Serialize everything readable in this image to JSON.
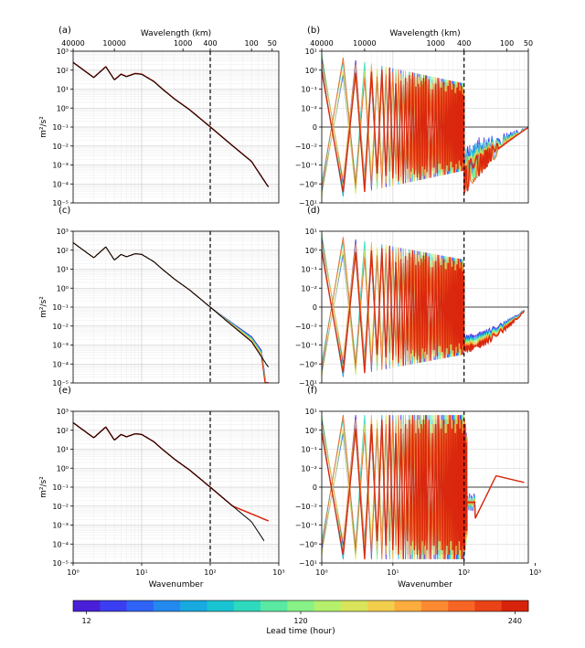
{
  "chart_data": {
    "type": "line",
    "description_panels": "six log-log spectrum panels; left column: kinetic energy spectra vs wavenumber; right column: spectrum difference (symlog) across forecast lead times",
    "top_axis_label": "Wavelength (km)",
    "top_axis_ticks": [
      "40000",
      "10000",
      "1000",
      "400",
      "100",
      "50"
    ],
    "top_axis_tick_wavenumbers": [
      1,
      4,
      40,
      100,
      400,
      800
    ],
    "x_label": "Wavenumber",
    "x_range": [
      1,
      1000
    ],
    "x_ticks": [
      "10⁰",
      "10¹",
      "10²",
      "10³"
    ],
    "left_ylabel": "m²/s²",
    "left_yrange": [
      1e-05,
      1000
    ],
    "left_yticks": [
      "10³",
      "10²",
      "10¹",
      "10⁰",
      "10⁻¹",
      "10⁻²",
      "10⁻³",
      "10⁻⁴",
      "10⁻⁵"
    ],
    "right_yticks": [
      "10¹",
      "10⁰",
      "10⁻¹",
      "10⁻²",
      "0",
      "−10⁻²",
      "−10⁻¹",
      "−10⁰",
      "−10¹"
    ],
    "dashed_line_wavenumber": 100,
    "truth_spectrum": {
      "k": [
        1,
        2,
        3,
        4,
        5,
        6,
        8,
        10,
        15,
        20,
        30,
        50,
        100,
        200,
        400,
        700
      ],
      "e": [
        250,
        40,
        150,
        30,
        60,
        45,
        65,
        60,
        25,
        10,
        3,
        0.8,
        0.1,
        0.012,
        0.0015,
        7e-05
      ]
    },
    "panels": [
      {
        "label": "(a)",
        "kind": "spectrum",
        "variant": "a"
      },
      {
        "label": "(b)",
        "kind": "difference",
        "variant": "b"
      },
      {
        "label": "(c)",
        "kind": "spectrum",
        "variant": "c"
      },
      {
        "label": "(d)",
        "kind": "difference",
        "variant": "d"
      },
      {
        "label": "(e)",
        "kind": "spectrum",
        "variant": "e"
      },
      {
        "label": "(f)",
        "kind": "difference",
        "variant": "f"
      }
    ],
    "colorbar": {
      "label": "Lead time (hour)",
      "min": 12,
      "max": 240,
      "ticks": [
        "12",
        "120",
        "240"
      ],
      "colors": [
        "#4a1fd8",
        "#3b3ef0",
        "#2f63f5",
        "#2489ee",
        "#17a9e0",
        "#19c4d2",
        "#2fd9bd",
        "#5ae9a2",
        "#87f286",
        "#b4f06c",
        "#d9e45a",
        "#f3cd4c",
        "#fcad3e",
        "#fd8a31",
        "#f76524",
        "#ea4317",
        "#d8230c"
      ]
    }
  }
}
